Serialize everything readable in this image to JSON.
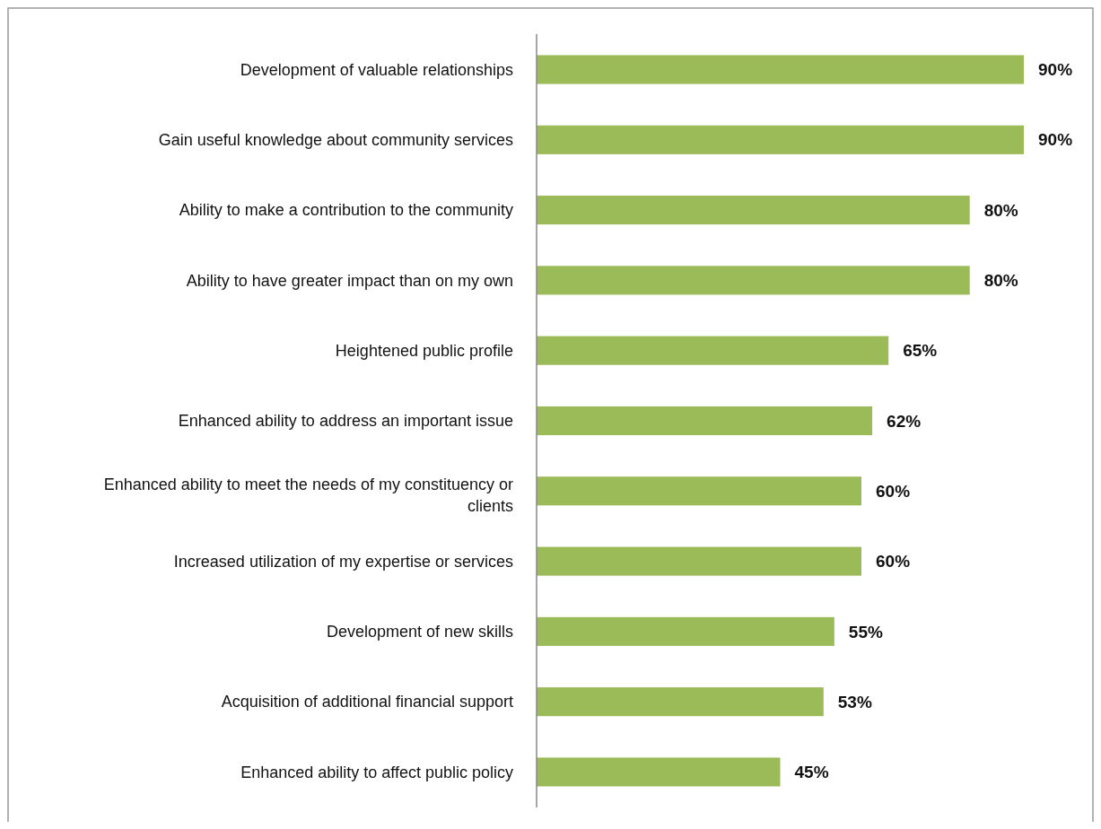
{
  "chart_data": {
    "type": "bar",
    "orientation": "horizontal",
    "categories": [
      "Development of valuable relationships",
      "Gain useful knowledge about community services",
      "Ability to make a contribution to the community",
      "Ability to have greater impact than on my own",
      "Heightened public profile",
      "Enhanced ability to address an important issue",
      "Enhanced ability to meet the needs of my constituency or clients",
      "Increased utilization of my expertise or services",
      "Development of new skills",
      "Acquisition of additional financial support",
      "Enhanced ability to affect public policy"
    ],
    "values": [
      90,
      90,
      80,
      80,
      65,
      62,
      60,
      60,
      55,
      53,
      45
    ],
    "value_labels": [
      "90%",
      "90%",
      "80%",
      "80%",
      "65%",
      "62%",
      "60%",
      "60%",
      "55%",
      "53%",
      "45%"
    ],
    "color": "#9bbb59"
  }
}
